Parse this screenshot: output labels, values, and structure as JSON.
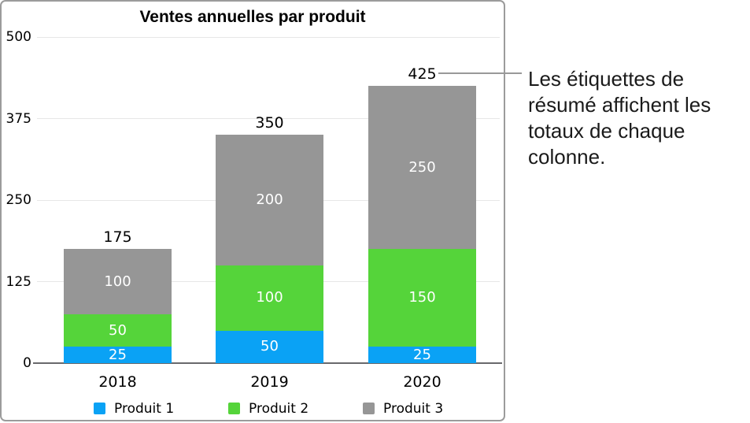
{
  "chart_data": {
    "type": "bar",
    "stacked": true,
    "title": "Ventes annuelles par produit",
    "categories": [
      "2018",
      "2019",
      "2020"
    ],
    "series": [
      {
        "name": "Produit 1",
        "color": "#0AA2F5",
        "values": [
          25,
          50,
          25
        ]
      },
      {
        "name": "Produit 2",
        "color": "#55D43A",
        "values": [
          50,
          100,
          150
        ]
      },
      {
        "name": "Produit 3",
        "color": "#969696",
        "values": [
          100,
          200,
          250
        ]
      }
    ],
    "totals": [
      175,
      350,
      425
    ],
    "y_ticks": [
      0,
      125,
      250,
      375,
      500
    ],
    "ylim": [
      0,
      500
    ],
    "grid": true,
    "legend_position": "bottom",
    "value_label_color": "#FFFFFF"
  },
  "annotation": {
    "text": "Les étiquettes de résumé affichent les totaux de chaque colonne.",
    "lines": [
      "Les étiquettes de",
      "résumé affichent les",
      "totaux de chaque",
      "colonne."
    ]
  },
  "colors": {
    "panel_border": "#9B9B9B",
    "gridline": "#E7E7E7",
    "axis_line": "#68686B",
    "connector": "#999999",
    "chart_text": "#000000",
    "background": "#FFFFFF"
  }
}
